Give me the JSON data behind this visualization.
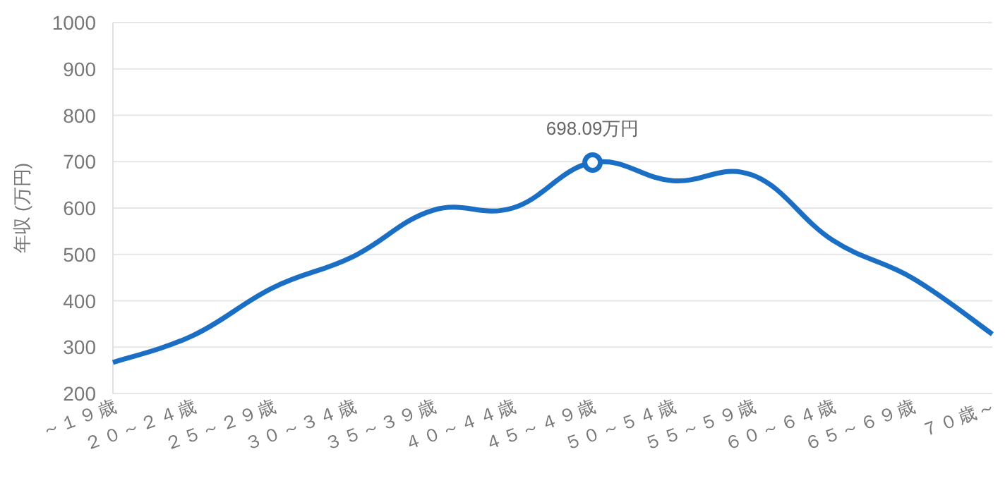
{
  "chart_data": {
    "type": "line",
    "ylabel": "年収 (万円)",
    "categories": [
      "～１９歳",
      "２０～２４歳",
      "２５～２９歳",
      "３０～３４歳",
      "３５～３９歳",
      "４０～４４歳",
      "４５～４９歳",
      "５０～５４歳",
      "５５～５９歳",
      "６０～６４歳",
      "６５～６９歳",
      "７０歳～"
    ],
    "series": [
      {
        "color": "#1a6fc4",
        "values": [
          267,
          325,
          428,
          495,
          595,
          600,
          698.09,
          659,
          671,
          531,
          449,
          328
        ]
      }
    ],
    "annotations": [
      {
        "text": "698.09万円",
        "x": "４５～４９歳",
        "y": 698.09
      }
    ],
    "ylim": [
      200,
      1000
    ],
    "yticks": [
      200,
      300,
      400,
      500,
      600,
      700,
      800,
      900,
      1000
    ],
    "grid": "y",
    "marker": "none",
    "line_style": "solid"
  }
}
